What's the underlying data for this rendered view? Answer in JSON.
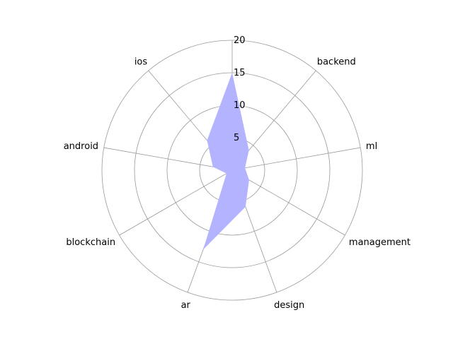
{
  "chart_data": {
    "type": "radar",
    "categories": [
      "",
      "backend",
      "ml",
      "management",
      "design",
      "ar",
      "blockchain",
      "android",
      "ios"
    ],
    "series": [
      {
        "values": [
          15,
          4,
          2,
          3,
          6,
          13,
          1,
          3,
          6
        ],
        "color": "#b3b3ff"
      }
    ],
    "rlim": [
      0,
      20
    ],
    "rticks": [
      5,
      10,
      15,
      20
    ],
    "rtick_labels": [
      "5",
      "10",
      "15",
      "20"
    ],
    "grid": true,
    "grid_color": "#999999",
    "label_color": "#000000"
  }
}
